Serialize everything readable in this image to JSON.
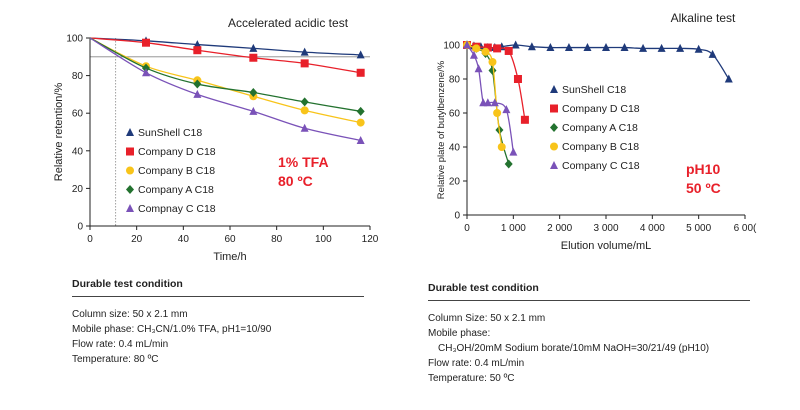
{
  "chart_data": [
    {
      "type": "line",
      "title": "Accelerated acidic test",
      "xlabel": "Time/h",
      "ylabel": "Relative retention/%",
      "xlim": [
        0,
        120
      ],
      "ylim": [
        0,
        100
      ],
      "xticks": [
        0,
        20,
        40,
        60,
        80,
        100,
        120
      ],
      "yticks": [
        0,
        20,
        40,
        60,
        80,
        100
      ],
      "reference_lines": {
        "x": 11,
        "y": 90
      },
      "legend_position": "center-left",
      "annotation": [
        "1% TFA",
        "80 ºC"
      ],
      "series": [
        {
          "name": "SunShell C18",
          "color": "#1f3a7a",
          "marker": "triangle",
          "points": [
            [
              0,
              100
            ],
            [
              24,
              98.5
            ],
            [
              46,
              96.5
            ],
            [
              70,
              94.5
            ],
            [
              92,
              92.5
            ],
            [
              116,
              91
            ]
          ]
        },
        {
          "name": "Company D C18",
          "color": "#e8202a",
          "marker": "square",
          "points": [
            [
              0,
              100
            ],
            [
              24,
              97.5
            ],
            [
              46,
              93.5
            ],
            [
              70,
              89.5
            ],
            [
              92,
              86.5
            ],
            [
              116,
              81.5
            ]
          ]
        },
        {
          "name": "Company B C18",
          "color": "#f8c41a",
          "marker": "circle",
          "points": [
            [
              0,
              100
            ],
            [
              24,
              85
            ],
            [
              46,
              77.5
            ],
            [
              70,
              69
            ],
            [
              92,
              61.5
            ],
            [
              116,
              55
            ]
          ]
        },
        {
          "name": "Company A C18",
          "color": "#23722f",
          "marker": "diamond",
          "points": [
            [
              0,
              100
            ],
            [
              24,
              84
            ],
            [
              46,
              75.5
            ],
            [
              70,
              71
            ],
            [
              92,
              66
            ],
            [
              116,
              61
            ]
          ]
        },
        {
          "name": "Compnay C C18",
          "color": "#7a52b8",
          "marker": "triangle",
          "points": [
            [
              0,
              100
            ],
            [
              24,
              81.5
            ],
            [
              46,
              70
            ],
            [
              70,
              61
            ],
            [
              92,
              52
            ],
            [
              116,
              45.5
            ]
          ]
        }
      ]
    },
    {
      "type": "line",
      "title": "Alkaline test",
      "xlabel": "Elution volume/mL",
      "ylabel": "Relative plate of butylbenzene/%",
      "xlim": [
        0,
        6000
      ],
      "ylim": [
        0,
        100
      ],
      "xtick_labels": [
        "0",
        "1 000",
        "2 000",
        "3 000",
        "4 000",
        "5 000",
        "6 00("
      ],
      "yticks": [
        0,
        20,
        40,
        60,
        80,
        100
      ],
      "legend_position": "center",
      "annotation": [
        "pH10",
        "50 ºC"
      ],
      "series": [
        {
          "name": "SunShell C18",
          "color": "#1f3a7a",
          "marker": "triangle",
          "points": [
            [
              0,
              100
            ],
            [
              150,
              99.5
            ],
            [
              300,
              99
            ],
            [
              450,
              98.5
            ],
            [
              600,
              98.5
            ],
            [
              750,
              99
            ],
            [
              1050,
              100
            ],
            [
              1400,
              99
            ],
            [
              1800,
              98.5
            ],
            [
              2200,
              98.5
            ],
            [
              2600,
              98.5
            ],
            [
              3000,
              98.5
            ],
            [
              3400,
              98.5
            ],
            [
              3800,
              98
            ],
            [
              4200,
              98
            ],
            [
              4600,
              98
            ],
            [
              5000,
              97.5
            ],
            [
              5300,
              94.5
            ],
            [
              5650,
              80
            ]
          ]
        },
        {
          "name": "Company D C18",
          "color": "#e8202a",
          "marker": "square",
          "points": [
            [
              0,
              100
            ],
            [
              200,
              99
            ],
            [
              450,
              98.5
            ],
            [
              650,
              98
            ],
            [
              900,
              96.5
            ],
            [
              1100,
              80
            ],
            [
              1250,
              56
            ]
          ]
        },
        {
          "name": "Company A C18",
          "color": "#23722f",
          "marker": "diamond",
          "points": [
            [
              0,
              100
            ],
            [
              200,
              98
            ],
            [
              400,
              95
            ],
            [
              550,
              85
            ],
            [
              700,
              50
            ],
            [
              900,
              30
            ]
          ]
        },
        {
          "name": "Company B C18",
          "color": "#f8c41a",
          "marker": "circle",
          "points": [
            [
              0,
              100
            ],
            [
              200,
              98
            ],
            [
              400,
              96
            ],
            [
              550,
              90
            ],
            [
              650,
              60
            ],
            [
              750,
              40
            ]
          ]
        },
        {
          "name": "Company C C18",
          "color": "#7a52b8",
          "marker": "triangle",
          "points": [
            [
              0,
              100
            ],
            [
              150,
              94
            ],
            [
              250,
              86
            ],
            [
              350,
              66
            ],
            [
              450,
              66
            ],
            [
              600,
              66
            ],
            [
              850,
              62
            ],
            [
              1000,
              37
            ]
          ]
        }
      ]
    }
  ],
  "conditions_left": {
    "heading": "Durable test condition",
    "lines": [
      "Column size:  50 x 2.1 mm",
      "Mobile phase:  CH₃CN/1.0% TFA, pH1=10/90",
      "Flow rate: 0.4 mL/min",
      "Temperature: 80 ºC"
    ]
  },
  "conditions_right": {
    "heading": "Durable test condition",
    "lines": [
      "Column Size: 50 x 2.1 mm",
      "Mobile phase:",
      "CH₃OH/20mM Sodium borate/10mM NaOH=30/21/49 (pH10)",
      "Flow rate: 0.4 mL/min",
      "Temperature: 50 ºC"
    ]
  }
}
